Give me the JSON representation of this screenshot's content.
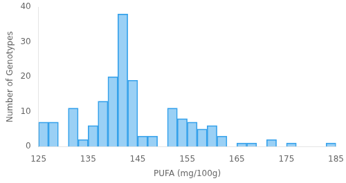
{
  "chart_data": {
    "type": "histogram",
    "bins": [
      125,
      127,
      129,
      131,
      133,
      135,
      137,
      139,
      141,
      143,
      145,
      147,
      149,
      151,
      153,
      155,
      157,
      159,
      161,
      163,
      165,
      167,
      169,
      171,
      173,
      175,
      177,
      179,
      181,
      183,
      185
    ],
    "values": [
      7,
      7,
      0,
      11,
      2,
      6,
      13,
      20,
      38,
      19,
      3,
      3,
      0,
      11,
      8,
      7,
      5,
      6,
      3,
      0,
      1,
      1,
      0,
      2,
      0,
      1,
      0,
      0,
      0,
      1
    ],
    "xlabel": "PUFA (mg/100g)",
    "ylabel": "Number of Genotypes",
    "xlim": [
      125,
      185
    ],
    "ylim": [
      0,
      40
    ],
    "xticks": [
      125,
      135,
      145,
      155,
      165,
      175,
      185
    ],
    "yticks": [
      0,
      10,
      20,
      30,
      40
    ],
    "grid": false
  }
}
